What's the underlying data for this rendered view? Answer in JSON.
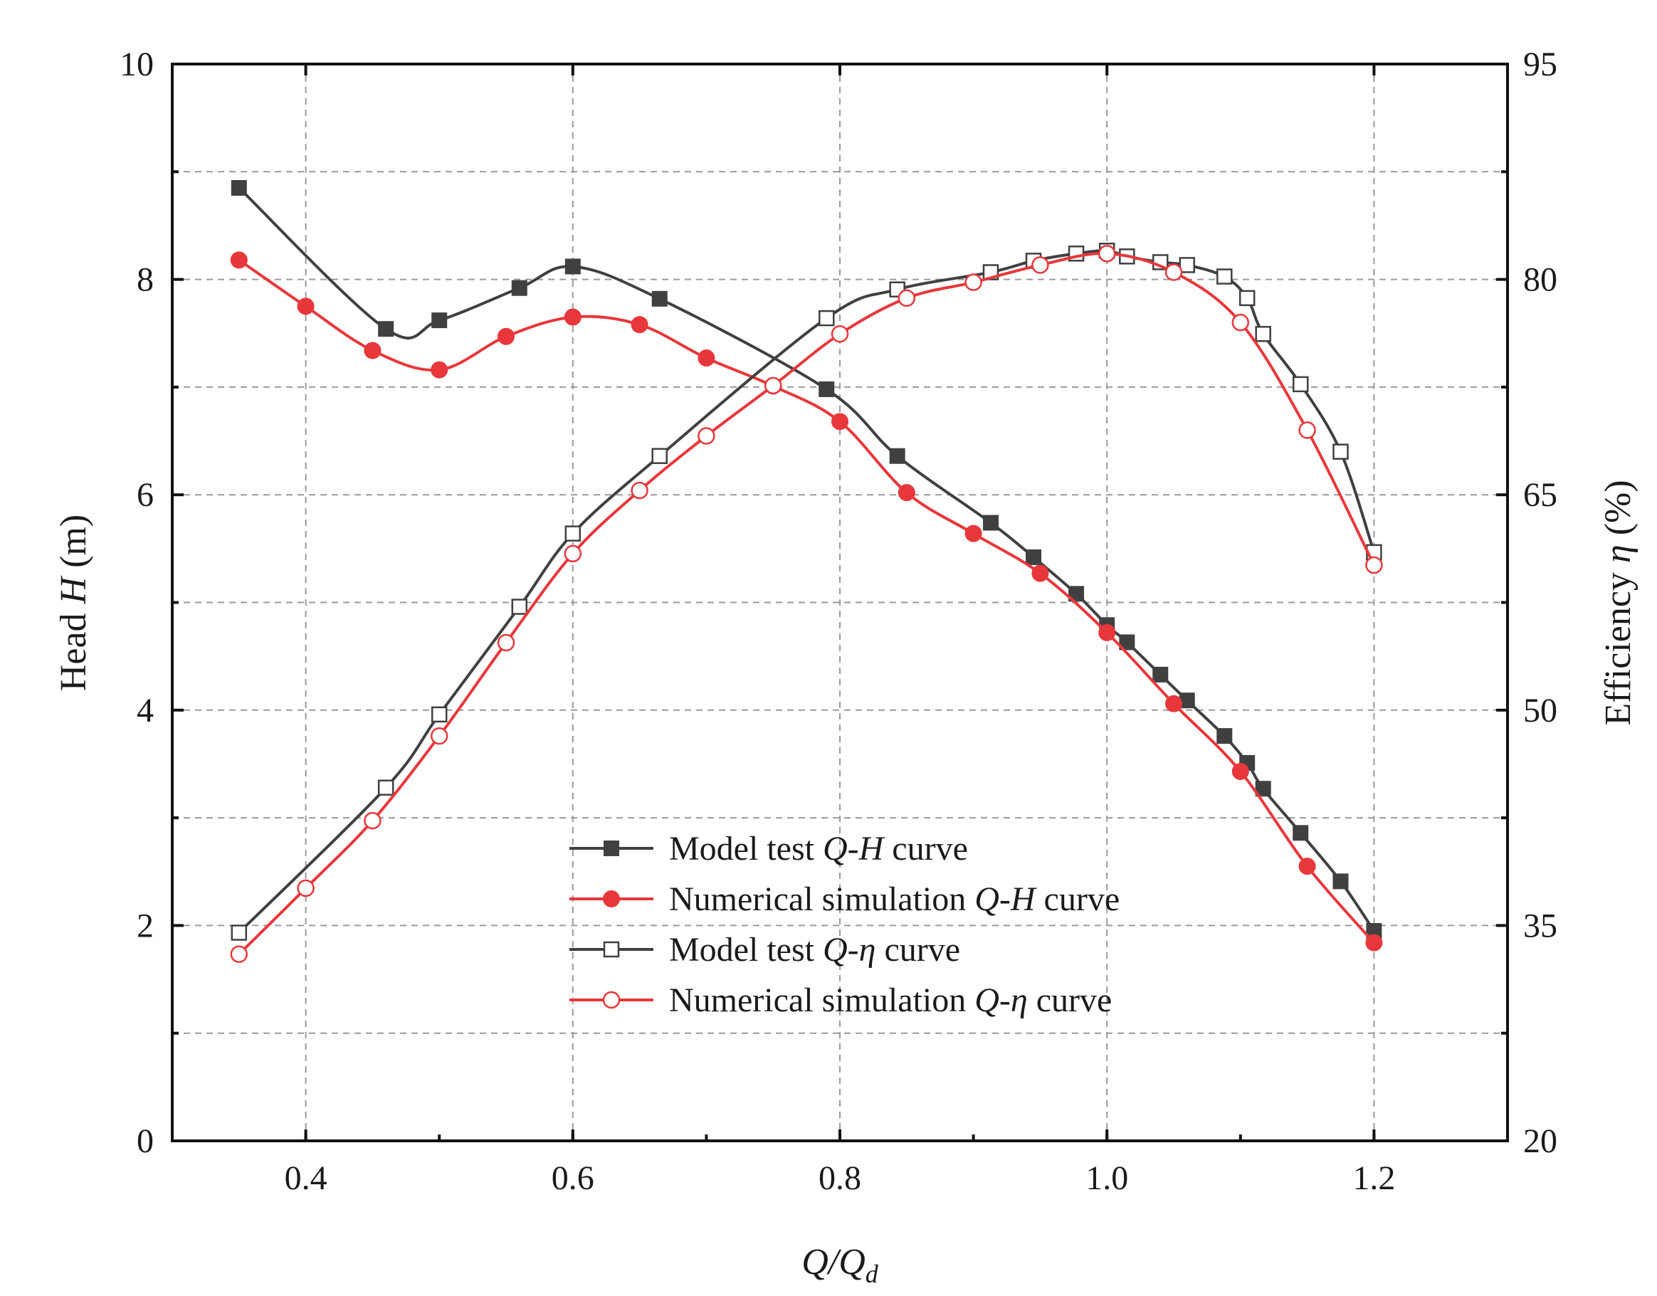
{
  "chart_data": {
    "type": "line",
    "title": "",
    "xlabel": {
      "main": "Q/Q",
      "sub": "d"
    },
    "ylabel_left": {
      "prefix": "Head ",
      "var": "H",
      "suffix": " (m)"
    },
    "ylabel_right": {
      "prefix": "Efficiency ",
      "var": "η",
      "suffix": " (%)"
    },
    "xlim": [
      0.3,
      1.3
    ],
    "ylim_left": [
      0,
      10
    ],
    "ylim_right": [
      20,
      95
    ],
    "xticks": [
      0.4,
      0.6,
      0.8,
      1.0,
      1.2
    ],
    "xtick_labels": [
      "0.4",
      "0.6",
      "0.8",
      "1.0",
      "1.2"
    ],
    "yticks_left": [
      0,
      2,
      4,
      6,
      8,
      10
    ],
    "yticks_left_labels": [
      "0",
      "2",
      "4",
      "6",
      "8",
      "10"
    ],
    "yticks_right": [
      20,
      35,
      50,
      65,
      80,
      95
    ],
    "yticks_right_labels": [
      "20",
      "35",
      "50",
      "65",
      "80",
      "95"
    ],
    "grid": true,
    "legend_position": "bottom-center",
    "series": [
      {
        "name": "Model test Q-H curve",
        "legend": {
          "pre": "Model test ",
          "var": "Q-H",
          "post": " curve"
        },
        "axis": "left",
        "color": "#404040",
        "marker": "filled-square",
        "x": [
          0.35,
          0.46,
          0.5,
          0.56,
          0.6,
          0.665,
          0.79,
          0.843,
          0.913,
          0.945,
          0.977,
          1.0,
          1.015,
          1.04,
          1.06,
          1.088,
          1.105,
          1.117,
          1.145,
          1.175,
          1.2
        ],
        "y": [
          8.85,
          7.54,
          7.62,
          7.92,
          8.12,
          7.82,
          6.98,
          6.36,
          5.74,
          5.42,
          5.08,
          4.79,
          4.63,
          4.33,
          4.09,
          3.76,
          3.51,
          3.27,
          2.86,
          2.41,
          1.95
        ]
      },
      {
        "name": "Numerical simulation Q-H curve",
        "legend": {
          "pre": "Numerical simulation ",
          "var": "Q-H",
          "post": " curve"
        },
        "axis": "left",
        "color": "#e8373b",
        "marker": "filled-circle",
        "x": [
          0.35,
          0.4,
          0.45,
          0.5,
          0.55,
          0.6,
          0.65,
          0.7,
          0.75,
          0.8,
          0.85,
          0.9,
          0.95,
          1.0,
          1.05,
          1.1,
          1.15,
          1.2
        ],
        "y": [
          8.18,
          7.75,
          7.34,
          7.16,
          7.47,
          7.65,
          7.58,
          7.27,
          7.01,
          6.68,
          6.02,
          5.64,
          5.27,
          4.72,
          4.06,
          3.43,
          2.55,
          1.84
        ]
      },
      {
        "name": "Model test Q-η curve",
        "legend": {
          "pre": "Model test ",
          "var": "Q-η",
          "post": " curve"
        },
        "axis": "right",
        "color": "#404040",
        "marker": "open-square",
        "x": [
          0.35,
          0.46,
          0.5,
          0.56,
          0.6,
          0.665,
          0.79,
          0.843,
          0.913,
          0.945,
          0.977,
          1.0,
          1.015,
          1.04,
          1.06,
          1.088,
          1.105,
          1.117,
          1.145,
          1.175,
          1.2
        ],
        "y": [
          34.5,
          44.6,
          49.7,
          57.2,
          62.3,
          67.7,
          77.3,
          79.3,
          80.5,
          81.3,
          81.8,
          82.0,
          81.6,
          81.2,
          81.0,
          80.2,
          78.7,
          76.2,
          72.7,
          68.0,
          61.0
        ]
      },
      {
        "name": "Numerical simulation Q-η curve",
        "legend": {
          "pre": "Numerical simulation ",
          "var": "Q-η",
          "post": " curve"
        },
        "axis": "right",
        "color": "#e8373b",
        "marker": "open-circle",
        "x": [
          0.35,
          0.4,
          0.45,
          0.5,
          0.55,
          0.6,
          0.65,
          0.7,
          0.75,
          0.8,
          0.85,
          0.9,
          0.95,
          1.0,
          1.05,
          1.1,
          1.15,
          1.2
        ],
        "y": [
          33.0,
          37.6,
          42.3,
          48.2,
          54.7,
          60.9,
          65.3,
          69.1,
          72.6,
          76.2,
          78.7,
          79.8,
          81.0,
          81.8,
          80.5,
          77.0,
          69.5,
          60.1
        ]
      }
    ]
  }
}
